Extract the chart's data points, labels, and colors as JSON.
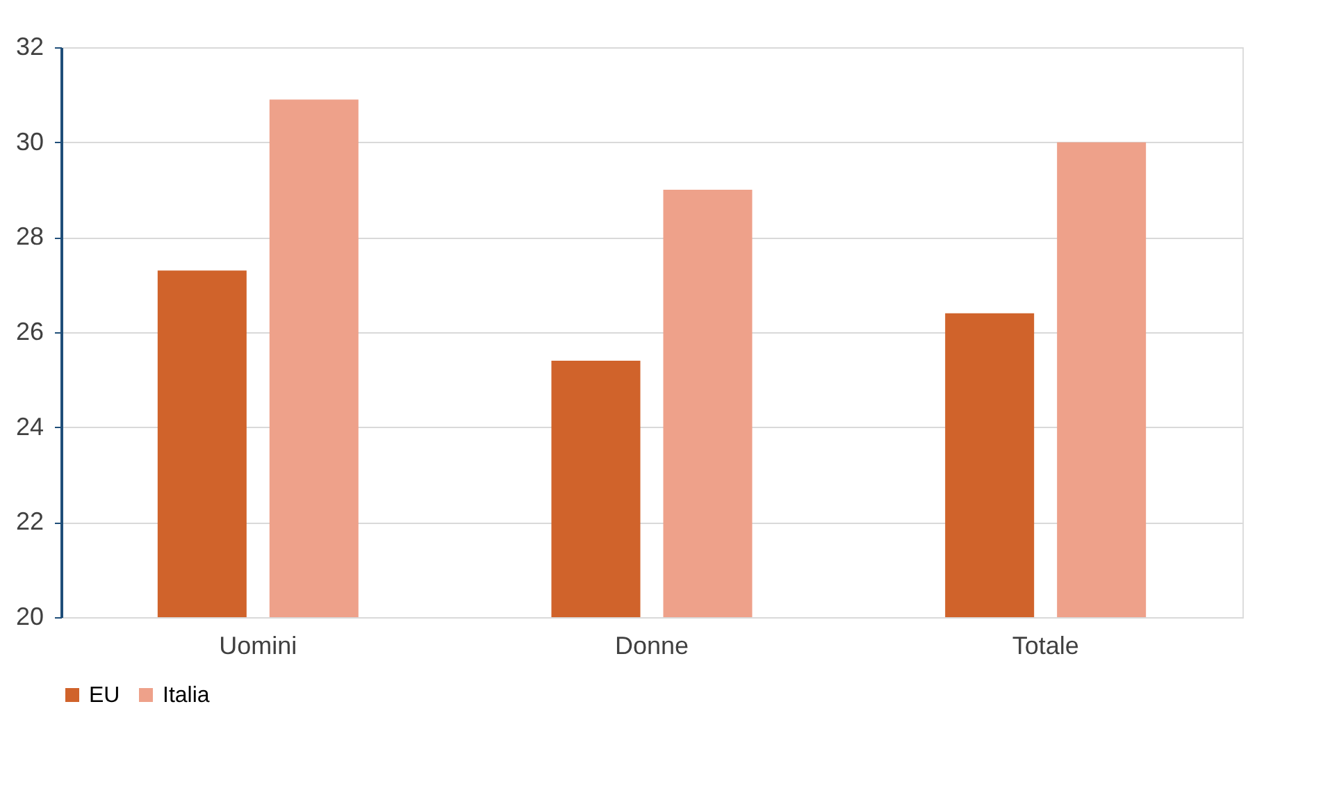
{
  "chart_data": {
    "type": "bar",
    "categories": [
      "Uomini",
      "Donne",
      "Totale"
    ],
    "series": [
      {
        "name": "EU",
        "color": "#d0632b",
        "values": [
          27.3,
          25.4,
          26.4
        ]
      },
      {
        "name": "Italia",
        "color": "#eea18a",
        "values": [
          30.9,
          29.0,
          30.0
        ]
      }
    ],
    "ylim": [
      20,
      32
    ],
    "yticks": [
      20,
      22,
      24,
      26,
      28,
      30,
      32
    ],
    "grid": "y",
    "legend": "bottom"
  }
}
